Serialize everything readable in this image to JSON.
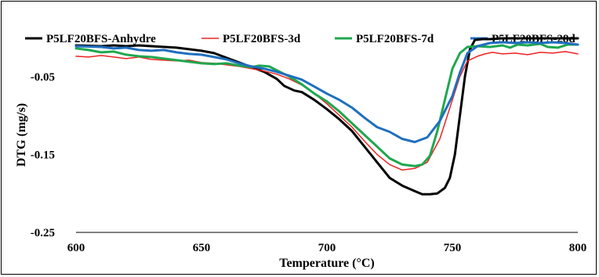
{
  "chart_data": {
    "type": "line",
    "xlabel": "Temperature (°C)",
    "ylabel": "DTG (mg/s)",
    "xlim": [
      600,
      800
    ],
    "ylim": [
      -0.25,
      0.0
    ],
    "x_ticks": [
      "600",
      "650",
      "700",
      "750",
      "800"
    ],
    "y_ticks": [
      "-0.05",
      "-0.15",
      "-0.25"
    ],
    "grid": false,
    "legend_position": "top",
    "series": [
      {
        "name": "P5LF20BFS-Anhydre",
        "color": "#000000",
        "points": [
          [
            600,
            -0.01
          ],
          [
            610,
            -0.011
          ],
          [
            615,
            -0.01
          ],
          [
            620,
            -0.011
          ],
          [
            625,
            -0.01
          ],
          [
            630,
            -0.011
          ],
          [
            640,
            -0.013
          ],
          [
            650,
            -0.017
          ],
          [
            655,
            -0.02
          ],
          [
            660,
            -0.026
          ],
          [
            665,
            -0.032
          ],
          [
            670,
            -0.038
          ],
          [
            675,
            -0.044
          ],
          [
            680,
            -0.053
          ],
          [
            683,
            -0.062
          ],
          [
            687,
            -0.068
          ],
          [
            690,
            -0.07
          ],
          [
            695,
            -0.08
          ],
          [
            700,
            -0.092
          ],
          [
            705,
            -0.105
          ],
          [
            710,
            -0.12
          ],
          [
            715,
            -0.14
          ],
          [
            720,
            -0.16
          ],
          [
            725,
            -0.18
          ],
          [
            730,
            -0.19
          ],
          [
            735,
            -0.197
          ],
          [
            738,
            -0.201
          ],
          [
            741,
            -0.201
          ],
          [
            744,
            -0.2
          ],
          [
            747,
            -0.193
          ],
          [
            749,
            -0.18
          ],
          [
            751,
            -0.15
          ],
          [
            753,
            -0.1
          ],
          [
            755,
            -0.05
          ],
          [
            757,
            -0.015
          ],
          [
            759,
            -0.003
          ],
          [
            762,
            -0.002
          ],
          [
            765,
            -0.002
          ],
          [
            770,
            -0.001
          ],
          [
            780,
            -0.001
          ],
          [
            790,
            -0.001
          ],
          [
            800,
            -0.001
          ]
        ]
      },
      {
        "name": "P5LF20BFS-3d",
        "color": "#ee2222",
        "points": [
          [
            600,
            -0.024
          ],
          [
            605,
            -0.025
          ],
          [
            610,
            -0.023
          ],
          [
            615,
            -0.025
          ],
          [
            620,
            -0.027
          ],
          [
            625,
            -0.025
          ],
          [
            630,
            -0.028
          ],
          [
            640,
            -0.03
          ],
          [
            645,
            -0.029
          ],
          [
            650,
            -0.032
          ],
          [
            655,
            -0.033
          ],
          [
            660,
            -0.035
          ],
          [
            665,
            -0.037
          ],
          [
            670,
            -0.04
          ],
          [
            675,
            -0.043
          ],
          [
            680,
            -0.047
          ],
          [
            685,
            -0.053
          ],
          [
            690,
            -0.061
          ],
          [
            695,
            -0.072
          ],
          [
            700,
            -0.085
          ],
          [
            705,
            -0.1
          ],
          [
            710,
            -0.115
          ],
          [
            715,
            -0.133
          ],
          [
            720,
            -0.15
          ],
          [
            725,
            -0.163
          ],
          [
            730,
            -0.17
          ],
          [
            735,
            -0.168
          ],
          [
            740,
            -0.16
          ],
          [
            745,
            -0.13
          ],
          [
            750,
            -0.08
          ],
          [
            753,
            -0.05
          ],
          [
            756,
            -0.03
          ],
          [
            760,
            -0.024
          ],
          [
            763,
            -0.021
          ],
          [
            766,
            -0.019
          ],
          [
            770,
            -0.021
          ],
          [
            775,
            -0.02
          ],
          [
            780,
            -0.022
          ],
          [
            785,
            -0.019
          ],
          [
            790,
            -0.02
          ],
          [
            795,
            -0.018
          ],
          [
            800,
            -0.021
          ]
        ]
      },
      {
        "name": "P5LF20BFS-7d",
        "color": "#1fa84f",
        "points": [
          [
            600,
            -0.014
          ],
          [
            605,
            -0.016
          ],
          [
            610,
            -0.019
          ],
          [
            615,
            -0.018
          ],
          [
            620,
            -0.022
          ],
          [
            625,
            -0.024
          ],
          [
            630,
            -0.025
          ],
          [
            635,
            -0.027
          ],
          [
            640,
            -0.029
          ],
          [
            645,
            -0.031
          ],
          [
            650,
            -0.033
          ],
          [
            655,
            -0.034
          ],
          [
            660,
            -0.033
          ],
          [
            665,
            -0.036
          ],
          [
            670,
            -0.038
          ],
          [
            673,
            -0.036
          ],
          [
            677,
            -0.037
          ],
          [
            680,
            -0.042
          ],
          [
            685,
            -0.05
          ],
          [
            690,
            -0.06
          ],
          [
            695,
            -0.072
          ],
          [
            700,
            -0.082
          ],
          [
            705,
            -0.095
          ],
          [
            710,
            -0.11
          ],
          [
            715,
            -0.125
          ],
          [
            720,
            -0.14
          ],
          [
            725,
            -0.155
          ],
          [
            730,
            -0.163
          ],
          [
            735,
            -0.165
          ],
          [
            738,
            -0.163
          ],
          [
            741,
            -0.152
          ],
          [
            744,
            -0.12
          ],
          [
            747,
            -0.08
          ],
          [
            750,
            -0.04
          ],
          [
            753,
            -0.02
          ],
          [
            756,
            -0.012
          ],
          [
            760,
            -0.011
          ],
          [
            765,
            -0.012
          ],
          [
            770,
            -0.01
          ],
          [
            773,
            -0.013
          ],
          [
            776,
            -0.009
          ],
          [
            780,
            -0.01
          ],
          [
            785,
            -0.008
          ],
          [
            788,
            -0.012
          ],
          [
            792,
            -0.013
          ],
          [
            796,
            -0.009
          ],
          [
            800,
            -0.009
          ]
        ]
      },
      {
        "name": "P5LF20BFS-28d",
        "color": "#1f6fbf",
        "points": [
          [
            600,
            -0.011
          ],
          [
            610,
            -0.012
          ],
          [
            615,
            -0.014
          ],
          [
            620,
            -0.013
          ],
          [
            625,
            -0.016
          ],
          [
            630,
            -0.017
          ],
          [
            635,
            -0.016
          ],
          [
            640,
            -0.019
          ],
          [
            645,
            -0.021
          ],
          [
            650,
            -0.022
          ],
          [
            655,
            -0.025
          ],
          [
            660,
            -0.028
          ],
          [
            665,
            -0.033
          ],
          [
            670,
            -0.037
          ],
          [
            675,
            -0.04
          ],
          [
            680,
            -0.044
          ],
          [
            685,
            -0.049
          ],
          [
            690,
            -0.054
          ],
          [
            695,
            -0.063
          ],
          [
            700,
            -0.072
          ],
          [
            705,
            -0.08
          ],
          [
            710,
            -0.09
          ],
          [
            715,
            -0.103
          ],
          [
            720,
            -0.115
          ],
          [
            725,
            -0.121
          ],
          [
            730,
            -0.13
          ],
          [
            735,
            -0.134
          ],
          [
            740,
            -0.128
          ],
          [
            745,
            -0.107
          ],
          [
            750,
            -0.075
          ],
          [
            753,
            -0.045
          ],
          [
            756,
            -0.02
          ],
          [
            760,
            -0.011
          ],
          [
            765,
            -0.007
          ],
          [
            770,
            -0.006
          ],
          [
            775,
            -0.007
          ],
          [
            780,
            -0.006
          ],
          [
            785,
            -0.007
          ],
          [
            790,
            -0.006
          ],
          [
            795,
            -0.007
          ],
          [
            800,
            -0.009
          ]
        ]
      }
    ]
  }
}
